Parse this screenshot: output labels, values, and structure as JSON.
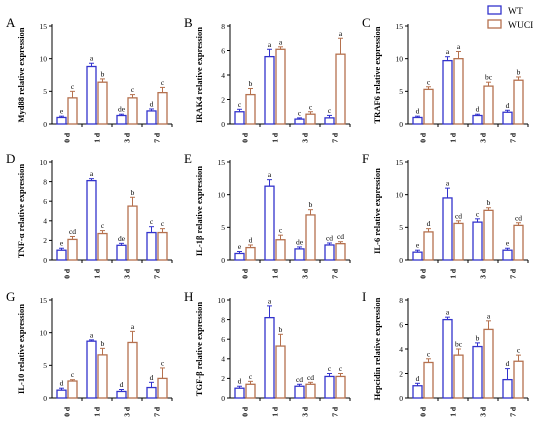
{
  "colors": {
    "wt": "#3333cc",
    "wuci": "#b5714e",
    "axis": "#000000"
  },
  "chart_data": [
    {
      "panel_letter": "A",
      "type": "bar",
      "ylabel": "Myd88 relative expression",
      "ylim": [
        0,
        15
      ],
      "yticks": [
        0,
        5,
        10,
        15
      ],
      "categories": [
        "0 d",
        "1 d",
        "3 d",
        "7 d"
      ],
      "series": [
        {
          "name": "WT",
          "values": [
            1.0,
            8.8,
            1.3,
            2.0
          ],
          "errors": [
            0.2,
            0.5,
            0.2,
            0.3
          ],
          "letters": [
            "e",
            "a",
            "de",
            "d"
          ]
        },
        {
          "name": "WUCI",
          "values": [
            4.0,
            6.4,
            4.0,
            4.8
          ],
          "errors": [
            1.0,
            0.5,
            0.5,
            0.8
          ],
          "letters": [
            "c",
            "b",
            "c",
            "c"
          ]
        }
      ]
    },
    {
      "panel_letter": "B",
      "type": "bar",
      "ylabel": "IRAK4 relative expression",
      "ylim": [
        0,
        8
      ],
      "yticks": [
        0,
        2,
        4,
        6,
        8
      ],
      "categories": [
        "0 d",
        "1 d",
        "3 d",
        "7 d"
      ],
      "series": [
        {
          "name": "WT",
          "values": [
            1.0,
            5.5,
            0.4,
            0.5
          ],
          "errors": [
            0.2,
            0.6,
            0.1,
            0.2
          ],
          "letters": [
            "c",
            "a",
            "c",
            "c"
          ]
        },
        {
          "name": "WUCI",
          "values": [
            2.4,
            6.1,
            0.8,
            5.7
          ],
          "errors": [
            0.5,
            0.2,
            0.2,
            1.3
          ],
          "letters": [
            "b",
            "a",
            "c",
            "a"
          ]
        }
      ]
    },
    {
      "panel_letter": "C",
      "type": "bar",
      "ylabel": "TRAF6 relative expression",
      "ylim": [
        0,
        15
      ],
      "yticks": [
        0,
        5,
        10,
        15
      ],
      "categories": [
        "0 d",
        "1 d",
        "3 d",
        "7 d"
      ],
      "series": [
        {
          "name": "WT",
          "values": [
            1.0,
            9.7,
            1.3,
            1.8
          ],
          "errors": [
            0.2,
            0.6,
            0.2,
            0.3
          ],
          "letters": [
            "d",
            "a",
            "d",
            "d"
          ]
        },
        {
          "name": "WUCI",
          "values": [
            5.3,
            10.0,
            5.8,
            6.7
          ],
          "errors": [
            0.4,
            1.1,
            0.6,
            0.5
          ],
          "letters": [
            "c",
            "a",
            "bc",
            "b"
          ]
        }
      ]
    },
    {
      "panel_letter": "D",
      "type": "bar",
      "ylabel": "TNF-α relative expression",
      "ylim": [
        0,
        10
      ],
      "yticks": [
        0,
        2,
        4,
        6,
        8,
        10
      ],
      "categories": [
        "0 d",
        "1 d",
        "3 d",
        "7 d"
      ],
      "series": [
        {
          "name": "WT",
          "values": [
            1.0,
            8.1,
            1.5,
            2.8
          ],
          "errors": [
            0.2,
            0.2,
            0.2,
            0.6
          ],
          "letters": [
            "e",
            "a",
            "de",
            "c"
          ]
        },
        {
          "name": "WUCI",
          "values": [
            2.1,
            2.7,
            5.5,
            2.8
          ],
          "errors": [
            0.3,
            0.3,
            0.9,
            0.4
          ],
          "letters": [
            "cd",
            "c",
            "b",
            "c"
          ]
        }
      ]
    },
    {
      "panel_letter": "E",
      "type": "bar",
      "ylabel": "IL-1β relative expression",
      "ylim": [
        0,
        15
      ],
      "yticks": [
        0,
        5,
        10,
        15
      ],
      "categories": [
        "0 d",
        "1 d",
        "3 d",
        "7 d"
      ],
      "series": [
        {
          "name": "WT",
          "values": [
            1.0,
            11.3,
            1.7,
            2.3
          ],
          "errors": [
            0.3,
            1.0,
            0.3,
            0.3
          ],
          "letters": [
            "e",
            "a",
            "de",
            "cd"
          ]
        },
        {
          "name": "WUCI",
          "values": [
            1.9,
            3.1,
            6.9,
            2.5
          ],
          "errors": [
            0.4,
            0.7,
            0.8,
            0.3
          ],
          "letters": [
            "d",
            "c",
            "b",
            "cd"
          ]
        }
      ]
    },
    {
      "panel_letter": "F",
      "type": "bar",
      "ylabel": "IL-6 relative expression",
      "ylim": [
        0,
        15
      ],
      "yticks": [
        0,
        5,
        10,
        15
      ],
      "categories": [
        "0 d",
        "1 d",
        "3 d",
        "7 d"
      ],
      "series": [
        {
          "name": "WT",
          "values": [
            1.2,
            9.5,
            5.8,
            1.5
          ],
          "errors": [
            0.3,
            1.5,
            0.5,
            0.3
          ],
          "letters": [
            "e",
            "a",
            "c",
            "e"
          ]
        },
        {
          "name": "WUCI",
          "values": [
            4.3,
            5.6,
            7.6,
            5.3
          ],
          "errors": [
            0.5,
            0.4,
            0.4,
            0.4
          ],
          "letters": [
            "d",
            "cd",
            "b",
            "cd"
          ]
        }
      ]
    },
    {
      "panel_letter": "G",
      "type": "bar",
      "ylabel": "IL-10 relative expression",
      "ylim": [
        0,
        15
      ],
      "yticks": [
        0,
        5,
        10,
        15
      ],
      "categories": [
        "0 d",
        "1 d",
        "3 d",
        "7 d"
      ],
      "series": [
        {
          "name": "WT",
          "values": [
            1.2,
            8.7,
            1.0,
            1.6
          ],
          "errors": [
            0.3,
            0.2,
            0.3,
            0.8
          ],
          "letters": [
            "d",
            "a",
            "d",
            "d"
          ]
        },
        {
          "name": "WUCI",
          "values": [
            2.6,
            6.6,
            8.5,
            3.0
          ],
          "errors": [
            0.2,
            1.0,
            1.7,
            1.6
          ],
          "letters": [
            "c",
            "b",
            "a",
            "c"
          ]
        }
      ]
    },
    {
      "panel_letter": "H",
      "type": "bar",
      "ylabel": "TGF-β relative expression",
      "ylim": [
        0,
        10
      ],
      "yticks": [
        0,
        2,
        4,
        6,
        8,
        10
      ],
      "categories": [
        "0 d",
        "1 d",
        "3 d",
        "7 d"
      ],
      "series": [
        {
          "name": "WT",
          "values": [
            1.0,
            8.2,
            1.2,
            2.2
          ],
          "errors": [
            0.2,
            1.2,
            0.2,
            0.3
          ],
          "letters": [
            "d",
            "a",
            "cd",
            "c"
          ]
        },
        {
          "name": "WUCI",
          "values": [
            1.4,
            5.3,
            1.4,
            2.2
          ],
          "errors": [
            0.3,
            1.2,
            0.2,
            0.3
          ],
          "letters": [
            "c",
            "b",
            "cd",
            "c"
          ]
        }
      ]
    },
    {
      "panel_letter": "I",
      "type": "bar",
      "ylabel": "Hepcidin relative expression",
      "ylim": [
        0,
        8
      ],
      "yticks": [
        0,
        2,
        4,
        6,
        8
      ],
      "categories": [
        "0 d",
        "1 d",
        "3 d",
        "7 d"
      ],
      "series": [
        {
          "name": "WT",
          "values": [
            1.0,
            6.4,
            4.2,
            1.5
          ],
          "errors": [
            0.2,
            0.2,
            0.3,
            0.9
          ],
          "letters": [
            "d",
            "a",
            "b",
            "d"
          ]
        },
        {
          "name": "WUCI",
          "values": [
            2.9,
            3.5,
            5.6,
            3.0
          ],
          "errors": [
            0.3,
            0.5,
            0.7,
            0.5
          ],
          "letters": [
            "c",
            "bc",
            "a",
            "c"
          ]
        }
      ]
    }
  ]
}
